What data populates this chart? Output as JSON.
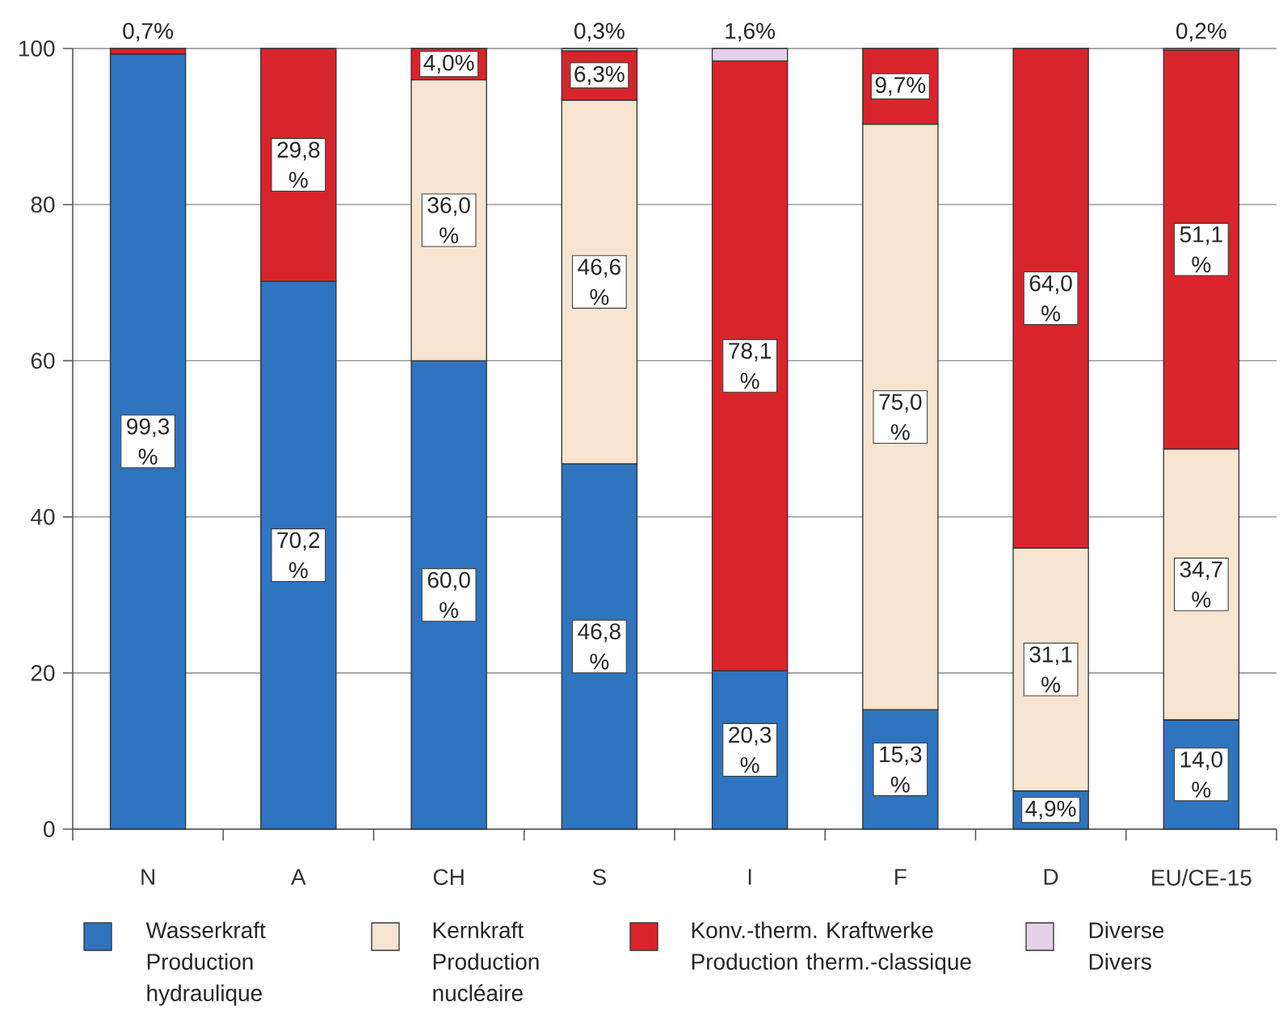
{
  "chart_data": {
    "type": "bar",
    "stacked": true,
    "categories": [
      "N",
      "A",
      "CH",
      "S",
      "I",
      "F",
      "D",
      "EU/CE-15"
    ],
    "series": [
      {
        "name": "Wasserkraft Production hydraulique",
        "color": "#2e74bf",
        "values": [
          99.3,
          70.2,
          60.0,
          46.8,
          20.3,
          15.3,
          4.9,
          14.0
        ],
        "value_labels": [
          "99,3 %",
          "70,2 %",
          "60,0 %",
          "46,8 %",
          "20,3 %",
          "15,3 %",
          "4,9%",
          "14,0 %"
        ]
      },
      {
        "name": "Kernkraft Production nucléaire",
        "color": "#f8e5d1",
        "values": [
          null,
          null,
          36.0,
          46.6,
          null,
          75.0,
          31.1,
          34.7
        ],
        "value_labels": [
          null,
          null,
          "36,0 %",
          "46,6 %",
          null,
          "75,0 %",
          "31,1 %",
          "34,7 %"
        ]
      },
      {
        "name": "Konv.-therm. Kraftwerke Production therm.-classique",
        "color": "#d8252b",
        "values": [
          0.7,
          29.8,
          4.0,
          6.3,
          78.1,
          9.7,
          64.0,
          51.1
        ],
        "value_labels": [
          "0,7%",
          "29,8 %",
          "4,0%",
          "6,3%",
          "78,1 %",
          "9,7%",
          "64,0 %",
          "51,1 %"
        ]
      },
      {
        "name": "Diverse Divers",
        "color": "#e6d0ea",
        "values": [
          null,
          null,
          null,
          0.3,
          1.6,
          null,
          null,
          0.2
        ],
        "value_labels": [
          null,
          null,
          null,
          "0,3%",
          "1,6%",
          null,
          null,
          "0,2%"
        ]
      }
    ],
    "ylim": [
      0,
      100
    ],
    "yticks": [
      0,
      20,
      40,
      60,
      80,
      100
    ],
    "grid": "y",
    "legend": "bottom"
  }
}
